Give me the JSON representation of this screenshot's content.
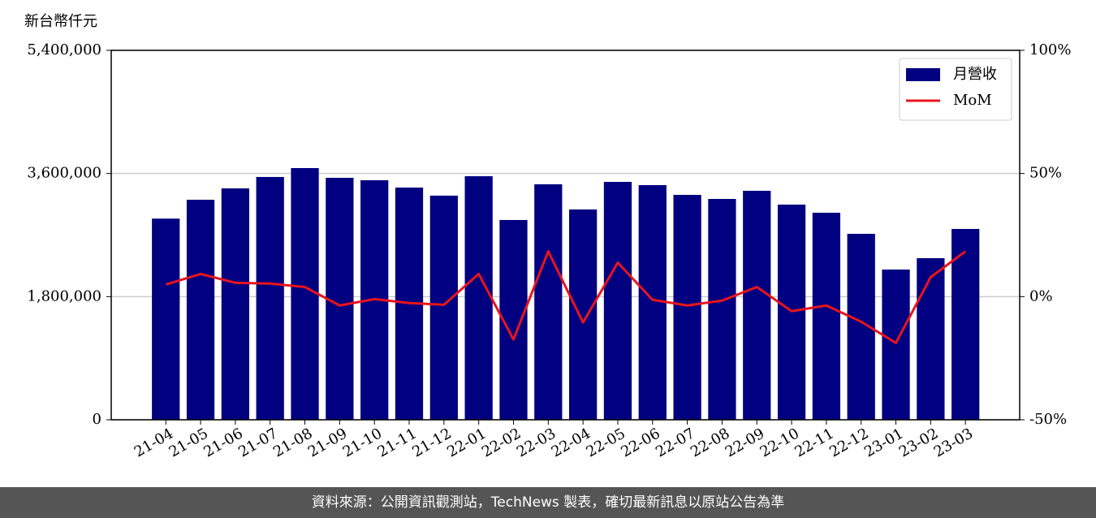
{
  "chart_data": {
    "type": "bar-line",
    "ylabel": "新台幣仟元",
    "categories": [
      "21-04",
      "21-05",
      "21-06",
      "21-07",
      "21-08",
      "21-09",
      "21-10",
      "21-11",
      "21-12",
      "22-01",
      "22-02",
      "22-03",
      "22-04",
      "22-05",
      "22-06",
      "22-07",
      "22-08",
      "22-09",
      "22-10",
      "22-11",
      "22-12",
      "23-01",
      "23-02",
      "23-03"
    ],
    "series": [
      {
        "name": "月營收",
        "type": "bar",
        "color": "#000080",
        "axis": "y",
        "values": [
          2940000,
          3216000,
          3382000,
          3549000,
          3679000,
          3537000,
          3501000,
          3394000,
          3276000,
          3560000,
          2920000,
          3442000,
          3074000,
          3477000,
          3430000,
          3287000,
          3228000,
          3347000,
          3145000,
          3026000,
          2718000,
          2196000,
          2362000,
          2789000
        ]
      },
      {
        "name": "MoM",
        "type": "line",
        "color": "#e8141c",
        "axis": "y2",
        "values": [
          4.9,
          9.2,
          5.6,
          5.3,
          3.9,
          -3.6,
          -1.0,
          -2.6,
          -3.3,
          9.2,
          -17.4,
          18.4,
          -10.5,
          13.8,
          -1.3,
          -3.6,
          -1.6,
          3.9,
          -5.9,
          -3.6,
          -10.2,
          -18.8,
          7.9,
          18.4
        ]
      }
    ],
    "ylim": [
      0,
      5400000
    ],
    "yticks": [
      0,
      {
        "value": 1800000,
        "label": "1,800,000"
      },
      {
        "value": 3600000,
        "label": "3,600,000"
      },
      {
        "value": 5400000,
        "label": "5,400,000"
      }
    ],
    "y2lim": [
      -50,
      100
    ],
    "y2ticks": [
      {
        "value": -50,
        "label": "-50%"
      },
      {
        "value": 0,
        "label": "0%"
      },
      {
        "value": 50,
        "label": "50%"
      },
      {
        "value": 100,
        "label": "100%"
      }
    ],
    "grid": true,
    "legend": "upper right"
  },
  "footer": "資料來源：公開資訊觀測站，TechNews 製表，確切最新訊息以原站公告為準"
}
